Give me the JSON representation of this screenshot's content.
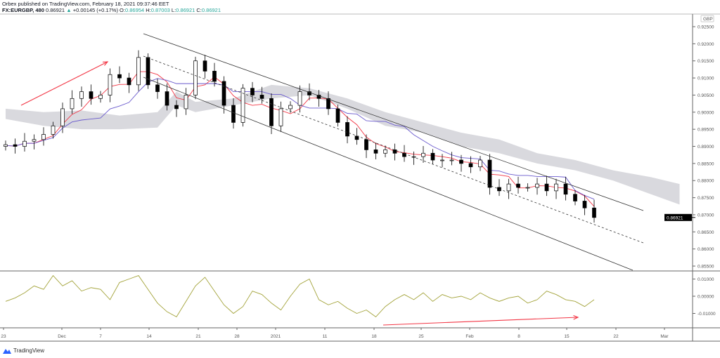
{
  "header": {
    "publisher_line": "Orbex published on TradingView.com, February 18, 2021 09:37:46 EET",
    "symbol": "FX:EURGBP, 480",
    "last": "0.86921",
    "change": "+0.00145 (+0.17%)",
    "o_label": "O:",
    "o": "0.86954",
    "h_label": "H:",
    "h": "0.87003",
    "l_label": "L:",
    "l": "0.86921",
    "c_label": "C:",
    "c": "0.86921"
  },
  "footer": {
    "logo_text": "TradingView"
  },
  "colors": {
    "up_body": "#ffffff",
    "down_body": "#000000",
    "tenkan": "#f23645",
    "kijun": "#6a5acd",
    "cloud": "#d9d9de",
    "oscillator": "#a3a33a",
    "arrow": "#f23645",
    "price_label_bg": "#000000"
  },
  "chart_data": [
    {
      "type": "candlestick",
      "currency_label": "GBP",
      "current_price_label": "0.86921",
      "y_ticks": [
        "0.92500",
        "0.92000",
        "0.91500",
        "0.91000",
        "0.90500",
        "0.90000",
        "0.89500",
        "0.89000",
        "0.88500",
        "0.88000",
        "0.87500",
        "0.87000",
        "0.86500",
        "0.86000",
        "0.85500"
      ],
      "ylim": [
        0.853,
        0.927
      ],
      "x_ticks": [
        "23",
        "Dec",
        "7",
        "14",
        "21",
        "28",
        "2021",
        "11",
        "18",
        "25",
        "Feb",
        "8",
        "15",
        "22",
        "Mar"
      ],
      "closes": [
        0.8905,
        0.89,
        0.8915,
        0.892,
        0.8935,
        0.896,
        0.901,
        0.904,
        0.906,
        0.904,
        0.905,
        0.911,
        0.91,
        0.908,
        0.916,
        0.908,
        0.906,
        0.902,
        0.901,
        0.905,
        0.915,
        0.912,
        0.909,
        0.902,
        0.897,
        0.907,
        0.905,
        0.904,
        0.896,
        0.901,
        0.902,
        0.906,
        0.905,
        0.904,
        0.901,
        0.897,
        0.893,
        0.892,
        0.889,
        0.888,
        0.889,
        0.888,
        0.887,
        0.887,
        0.888,
        0.886,
        0.886,
        0.886,
        0.885,
        0.884,
        0.886,
        0.878,
        0.877,
        0.879,
        0.878,
        0.878,
        0.879,
        0.877,
        0.879,
        0.876,
        0.874,
        0.872,
        0.8692
      ],
      "cloud": [
        [
          0,
          0.901,
          0.898
        ],
        [
          4,
          0.9,
          0.896
        ],
        [
          8,
          0.9005,
          0.895
        ],
        [
          12,
          0.899,
          0.895
        ],
        [
          16,
          0.9,
          0.8955
        ],
        [
          18,
          0.906,
          0.902
        ],
        [
          20,
          0.903,
          0.9
        ],
        [
          24,
          0.904,
          0.902
        ],
        [
          28,
          0.908,
          0.904
        ],
        [
          32,
          0.907,
          0.905
        ],
        [
          36,
          0.904,
          0.901
        ],
        [
          40,
          0.9,
          0.896
        ],
        [
          44,
          0.897,
          0.894
        ],
        [
          48,
          0.894,
          0.89
        ],
        [
          52,
          0.892,
          0.888
        ],
        [
          56,
          0.888,
          0.885
        ],
        [
          60,
          0.886,
          0.883
        ],
        [
          64,
          0.883,
          0.88
        ],
        [
          68,
          0.881,
          0.876
        ],
        [
          71,
          0.879,
          0.873
        ]
      ]
    },
    {
      "type": "line",
      "y_ticks": [
        "0.01000",
        "0.00000",
        "-0.01000"
      ],
      "ylim": [
        -0.015,
        0.015
      ],
      "values": [
        -0.003,
        -0.001,
        0.002,
        0.006,
        0.004,
        0.012,
        0.006,
        0.009,
        0.003,
        0.005,
        0.004,
        -0.002,
        0.008,
        0.01,
        0.012,
        0.004,
        -0.004,
        -0.009,
        -0.012,
        -0.003,
        0.006,
        0.011,
        0.003,
        -0.005,
        -0.01,
        -0.006,
        0.003,
        0.001,
        -0.004,
        -0.008,
        0.0,
        0.007,
        0.01,
        -0.002,
        -0.005,
        -0.003,
        -0.007,
        -0.01,
        -0.008,
        -0.012,
        -0.006,
        -0.002,
        0.001,
        -0.002,
        0.002,
        -0.003,
        0.001,
        -0.001,
        0.0,
        -0.002,
        0.002,
        -0.001,
        -0.003,
        -0.001,
        0.0,
        -0.004,
        -0.002,
        0.003,
        0.001,
        -0.002,
        -0.003,
        -0.006,
        -0.002
      ]
    }
  ]
}
